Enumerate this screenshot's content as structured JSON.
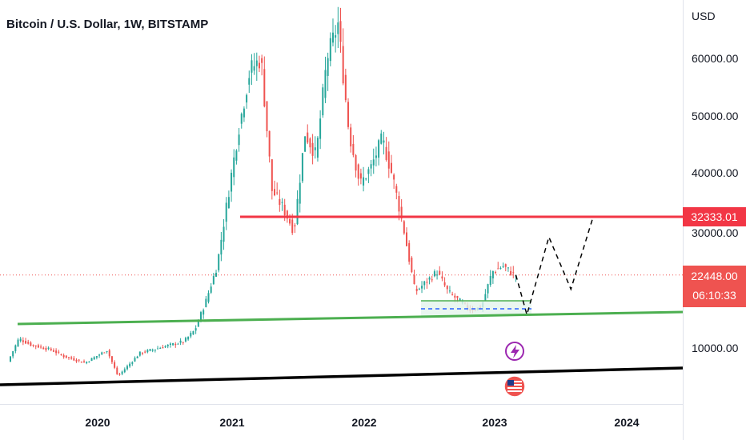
{
  "title": "Bitcoin / U.S. Dollar, 1W, BITSTAMP",
  "chart_data": {
    "type": "candlestick",
    "title": "Bitcoin / U.S. Dollar, 1W, BITSTAMP",
    "currency_label": "USD",
    "y_ticks": [
      "60000.00",
      "50000.00",
      "40000.00",
      "30000.00",
      "10000.00"
    ],
    "x_ticks": [
      "2020",
      "2021",
      "2022",
      "2023",
      "2024"
    ],
    "last_price": "22448.00",
    "countdown": "06:10:33",
    "resistance_level": "32333.01",
    "colors": {
      "up": "#26a69a",
      "down": "#ef5350",
      "resistance": "#f23645",
      "support": "#4caf50",
      "trendline": "#000000"
    },
    "price_path": [
      [
        "2019-05",
        7500
      ],
      [
        "2019-06",
        11500
      ],
      [
        "2019-07",
        10500
      ],
      [
        "2019-09",
        9500
      ],
      [
        "2019-10",
        8500
      ],
      [
        "2019-12",
        7300
      ],
      [
        "2020-02",
        9500
      ],
      [
        "2020-03",
        5000
      ],
      [
        "2020-05",
        9000
      ],
      [
        "2020-07",
        10000
      ],
      [
        "2020-09",
        11000
      ],
      [
        "2020-10",
        13000
      ],
      [
        "2020-11",
        18000
      ],
      [
        "2020-12",
        24000
      ],
      [
        "2021-01",
        36000
      ],
      [
        "2021-02",
        48000
      ],
      [
        "2021-03",
        58000
      ],
      [
        "2021-04",
        60000
      ],
      [
        "2021-05",
        37000
      ],
      [
        "2021-06",
        34000
      ],
      [
        "2021-07",
        30000
      ],
      [
        "2021-08",
        47000
      ],
      [
        "2021-09",
        43000
      ],
      [
        "2021-10",
        60000
      ],
      [
        "2021-11",
        66000
      ],
      [
        "2021-12",
        47000
      ],
      [
        "2022-01",
        38000
      ],
      [
        "2022-02",
        41000
      ],
      [
        "2022-03",
        46000
      ],
      [
        "2022-04",
        39000
      ],
      [
        "2022-05",
        30000
      ],
      [
        "2022-06",
        19500
      ],
      [
        "2022-08",
        23000
      ],
      [
        "2022-09",
        19500
      ],
      [
        "2022-11",
        16500
      ],
      [
        "2022-12",
        16800
      ],
      [
        "2023-01",
        23000
      ],
      [
        "2023-02",
        24000
      ],
      [
        "2023-03",
        22448
      ]
    ],
    "projection": [
      [
        "2023-03",
        22448
      ],
      [
        "2023-04",
        15600
      ],
      [
        "2023-06",
        29000
      ],
      [
        "2023-08",
        20000
      ],
      [
        "2023-10",
        32333
      ]
    ]
  },
  "badges": {
    "flash_icon": "lightning-icon",
    "flag_icon": "us-flag-icon"
  }
}
